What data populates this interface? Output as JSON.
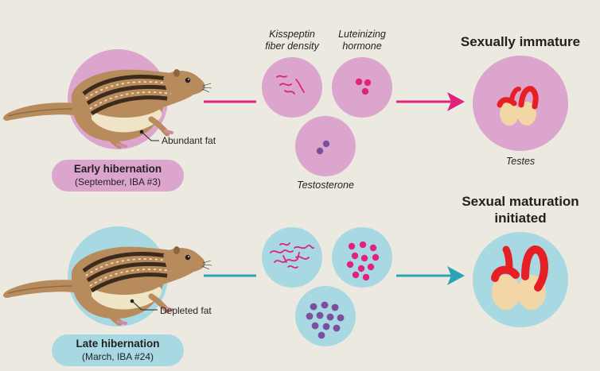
{
  "labels": {
    "kisspeptin_line1": "Kisspeptin",
    "kisspeptin_line2": "fiber density",
    "lh_line1": "Luteinizing",
    "lh_line2": "hormone",
    "testosterone": "Testosterone",
    "testes": "Testes"
  },
  "early": {
    "stage_title": "Early hibernation",
    "stage_subtitle": "(September, IBA #3)",
    "fat_label": "Abundant fat",
    "outcome_title": "Sexually immature",
    "circle_color": "#dca5cd",
    "pill_color": "#dca5cd",
    "arrow_color": "#e0237e"
  },
  "late": {
    "stage_title": "Late hibernation",
    "stage_subtitle": "(March, IBA #24)",
    "fat_label": "Depleted fat",
    "outcome_title_line1": "Sexual maturation",
    "outcome_title_line2": "initiated",
    "circle_color": "#a8d8e2",
    "pill_color": "#a8d8e2",
    "arrow_color": "#2aa3b8"
  },
  "colors": {
    "fiber": "#e0237e",
    "lh_dot": "#e0237e",
    "testosterone_dot": "#7b4fa0",
    "testes_fill": "#f2d6a6",
    "epididymis": "#e61f25"
  }
}
